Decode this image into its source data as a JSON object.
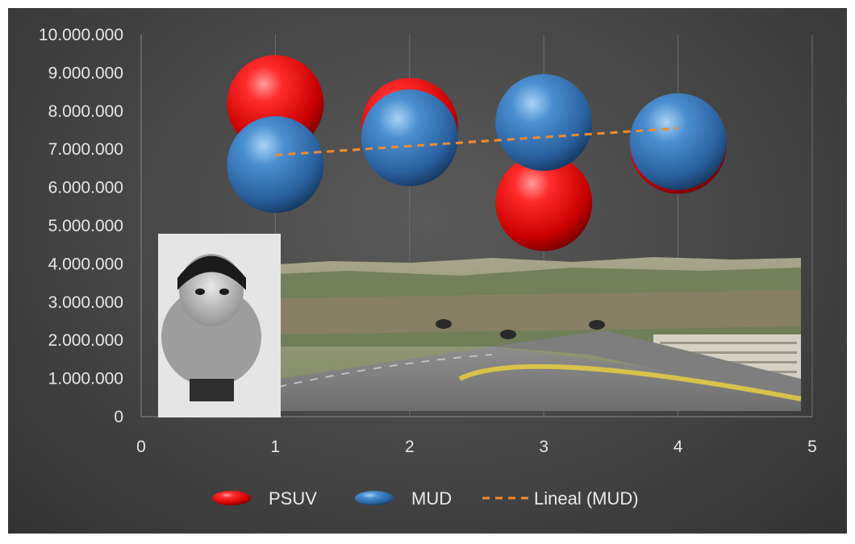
{
  "chart_data": {
    "type": "scatter",
    "title": "",
    "xlabel": "",
    "ylabel": "",
    "xlim": [
      0,
      5
    ],
    "ylim": [
      0,
      10000000
    ],
    "x_ticks": [
      {
        "value": 0,
        "label": "0"
      },
      {
        "value": 1,
        "label": "1"
      },
      {
        "value": 2,
        "label": "2"
      },
      {
        "value": 3,
        "label": "3"
      },
      {
        "value": 4,
        "label": "4"
      },
      {
        "value": 5,
        "label": "5"
      }
    ],
    "y_ticks": [
      {
        "value": 0,
        "label": "0"
      },
      {
        "value": 1000000,
        "label": "1.000.000"
      },
      {
        "value": 2000000,
        "label": "2.000.000"
      },
      {
        "value": 3000000,
        "label": "3.000.000"
      },
      {
        "value": 4000000,
        "label": "4.000.000"
      },
      {
        "value": 5000000,
        "label": "5.000.000"
      },
      {
        "value": 6000000,
        "label": "6.000.000"
      },
      {
        "value": 7000000,
        "label": "7.000.000"
      },
      {
        "value": 8000000,
        "label": "8.000.000"
      },
      {
        "value": 9000000,
        "label": "9.000.000"
      },
      {
        "value": 10000000,
        "label": "10.000.000"
      }
    ],
    "grid": {
      "vertical": true,
      "horizontal": false
    },
    "series": [
      {
        "name": "PSUV",
        "color": "#e01010",
        "x": [
          1,
          2,
          3,
          4
        ],
        "y": [
          8200000,
          7600000,
          5600000,
          7100000
        ]
      },
      {
        "name": "MUD",
        "color": "#3a7fc4",
        "x": [
          1,
          2,
          3,
          4
        ],
        "y": [
          6600000,
          7300000,
          7700000,
          7200000
        ]
      }
    ],
    "trendline": {
      "name": "Lineal (MUD)",
      "of": "MUD",
      "color": "#f08a30",
      "style": "dashed",
      "x": [
        1,
        4
      ],
      "y": [
        6850000,
        7550000
      ]
    },
    "legend": {
      "position": "bottom",
      "entries": [
        "PSUV",
        "MUD",
        "Lineal (MUD)"
      ]
    }
  },
  "images": [
    {
      "name": "child-photo",
      "kind": "grayscale-photo"
    },
    {
      "name": "city-highway-photo",
      "kind": "color-photo"
    }
  ]
}
